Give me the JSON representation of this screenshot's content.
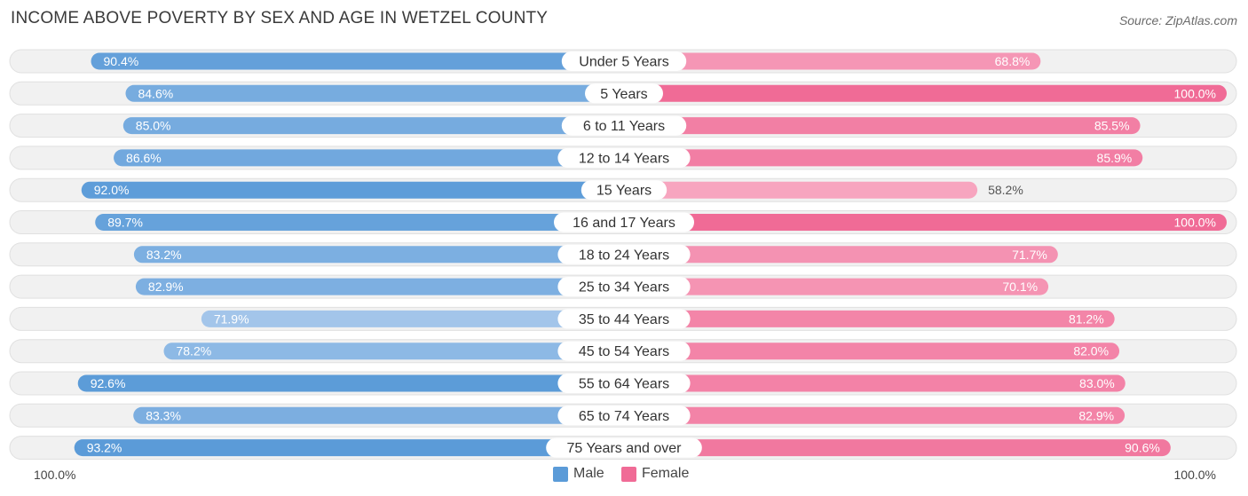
{
  "header": {
    "title": "INCOME ABOVE POVERTY BY SEX AND AGE IN WETZEL COUNTY",
    "source": "Source: ZipAtlas.com"
  },
  "legend": {
    "male_label": "Male",
    "female_label": "Female"
  },
  "axis": {
    "left_label": "100.0%",
    "right_label": "100.0%"
  },
  "colors": {
    "male_strong": "#5b9bd8",
    "male_light": "#a9c9ec",
    "female_strong": "#f06b96",
    "female_light": "#f7a9c2",
    "row_bg": "#f1f1f1",
    "row_border": "#e0e0e0"
  },
  "chart_data": {
    "type": "bar",
    "orientation": "horizontal-diverging",
    "title": "INCOME ABOVE POVERTY BY SEX AND AGE IN WETZEL COUNTY",
    "categories": [
      "Under 5 Years",
      "5 Years",
      "6 to 11 Years",
      "12 to 14 Years",
      "15 Years",
      "16 and 17 Years",
      "18 to 24 Years",
      "25 to 34 Years",
      "35 to 44 Years",
      "45 to 54 Years",
      "55 to 64 Years",
      "65 to 74 Years",
      "75 Years and over"
    ],
    "series": [
      {
        "name": "Male",
        "values": [
          90.4,
          84.6,
          85.0,
          86.6,
          92.0,
          89.7,
          83.2,
          82.9,
          71.9,
          78.2,
          92.6,
          83.3,
          93.2
        ]
      },
      {
        "name": "Female",
        "values": [
          68.8,
          100.0,
          85.5,
          85.9,
          58.2,
          100.0,
          71.7,
          70.1,
          81.2,
          82.0,
          83.0,
          82.9,
          90.6
        ]
      }
    ],
    "value_labels": {
      "male": [
        "90.4%",
        "84.6%",
        "85.0%",
        "86.6%",
        "92.0%",
        "89.7%",
        "83.2%",
        "82.9%",
        "71.9%",
        "78.2%",
        "92.6%",
        "83.3%",
        "93.2%"
      ],
      "female": [
        "68.8%",
        "100.0%",
        "85.5%",
        "85.9%",
        "58.2%",
        "100.0%",
        "71.7%",
        "70.1%",
        "81.2%",
        "82.0%",
        "83.0%",
        "82.9%",
        "90.6%"
      ]
    },
    "xlim": [
      0,
      100
    ],
    "legend_position": "bottom-center"
  }
}
